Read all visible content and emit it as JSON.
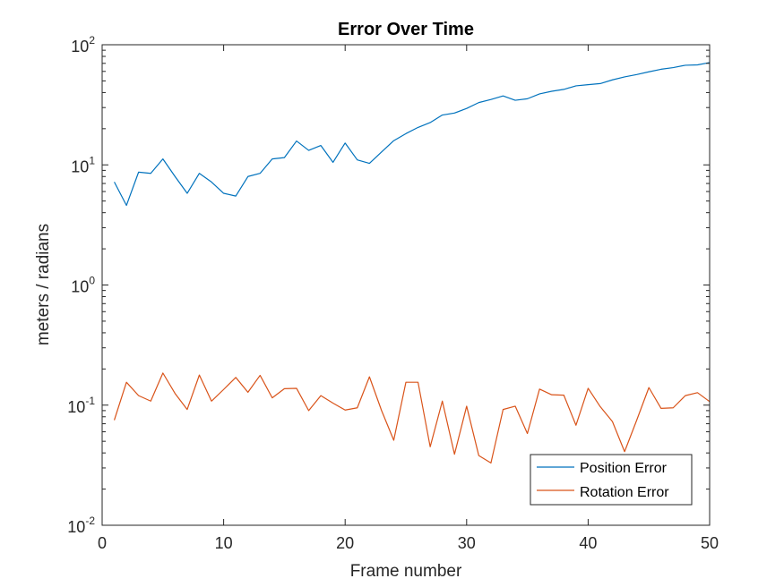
{
  "chart_data": {
    "type": "line",
    "title": "Error Over Time",
    "xlabel": "Frame number",
    "ylabel": "meters / radians",
    "xlim": [
      0,
      50
    ],
    "ylim": [
      0.01,
      100
    ],
    "y_scale": "log",
    "grid": false,
    "legend_position": "bottom-right",
    "x_ticks": [
      "0",
      "10",
      "20",
      "30",
      "40",
      "50"
    ],
    "y_ticks": [
      {
        "base": "10",
        "exp": "-2"
      },
      {
        "base": "10",
        "exp": "-1"
      },
      {
        "base": "10",
        "exp": "0"
      },
      {
        "base": "10",
        "exp": "1"
      },
      {
        "base": "10",
        "exp": "2"
      }
    ],
    "x": [
      1,
      2,
      3,
      4,
      5,
      6,
      7,
      8,
      9,
      10,
      11,
      12,
      13,
      14,
      15,
      16,
      17,
      18,
      19,
      20,
      21,
      22,
      23,
      24,
      25,
      26,
      27,
      28,
      29,
      30,
      31,
      32,
      33,
      34,
      35,
      36,
      37,
      38,
      39,
      40,
      41,
      42,
      43,
      44,
      45,
      46,
      47,
      48,
      49,
      50
    ],
    "series": [
      {
        "name": "Position Error",
        "color": "#0072BD",
        "values": [
          7.2,
          4.6,
          8.7,
          8.5,
          11.2,
          8.0,
          5.8,
          8.5,
          7.2,
          5.8,
          5.5,
          8.0,
          8.5,
          11.2,
          11.5,
          15.8,
          13.2,
          14.5,
          10.5,
          15.2,
          11.0,
          10.3,
          12.8,
          15.9,
          18.2,
          20.5,
          22.5,
          26.0,
          27.0,
          29.5,
          33.0,
          35.0,
          37.5,
          34.5,
          35.5,
          39.0,
          41.0,
          42.5,
          45.5,
          46.5,
          47.5,
          51.0,
          54.0,
          56.5,
          59.5,
          62.5,
          64.5,
          67.5,
          68.0,
          71.0
        ]
      },
      {
        "name": "Rotation Error",
        "color": "#D95319",
        "values": [
          0.075,
          0.155,
          0.12,
          0.108,
          0.185,
          0.125,
          0.092,
          0.178,
          0.108,
          0.135,
          0.17,
          0.128,
          0.177,
          0.115,
          0.137,
          0.138,
          0.09,
          0.12,
          0.104,
          0.091,
          0.095,
          0.172,
          0.09,
          0.051,
          0.155,
          0.155,
          0.045,
          0.108,
          0.039,
          0.098,
          0.038,
          0.033,
          0.092,
          0.098,
          0.058,
          0.136,
          0.122,
          0.121,
          0.068,
          0.138,
          0.097,
          0.073,
          0.041,
          0.075,
          0.14,
          0.094,
          0.095,
          0.12,
          0.127,
          0.107
        ]
      }
    ]
  }
}
